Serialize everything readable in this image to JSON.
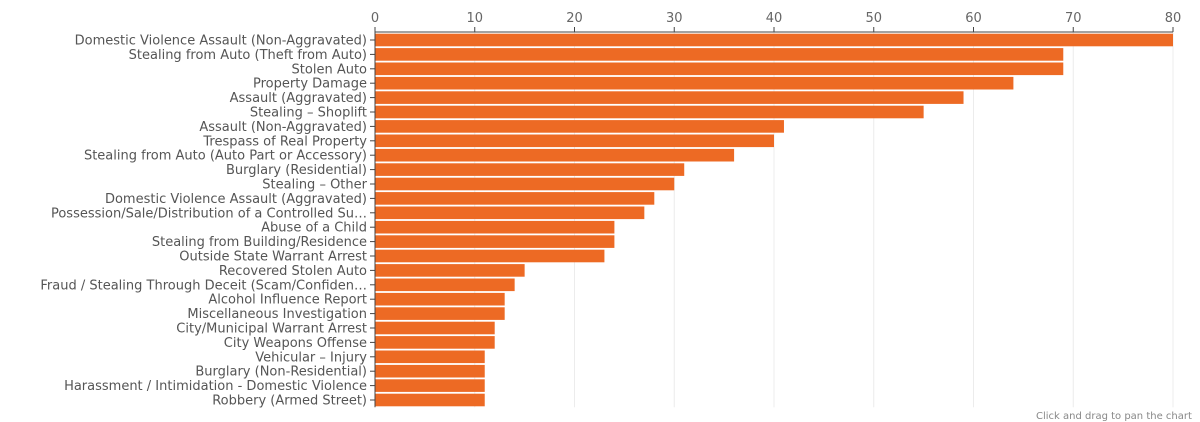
{
  "hint_text": "Click and drag to pan the chart",
  "colors": {
    "bar": "#ed6a24",
    "grid": "#ececec",
    "text": "#555555"
  },
  "chart_data": {
    "type": "bar",
    "orientation": "horizontal",
    "title": "",
    "xlabel": "",
    "ylabel": "",
    "xlim": [
      0,
      80
    ],
    "x_ticks": [
      0,
      10,
      20,
      30,
      40,
      50,
      60,
      70,
      80
    ],
    "x_axis_position": "top",
    "grid": true,
    "categories": [
      "Domestic Violence Assault (Non-Aggravated)",
      "Stealing from Auto (Theft from Auto)",
      "Stolen Auto",
      "Property Damage",
      "Assault (Aggravated)",
      "Stealing – Shoplift",
      "Assault (Non-Aggravated)",
      "Trespass of Real Property",
      "Stealing from Auto (Auto Part or Accessory)",
      "Burglary (Residential)",
      "Stealing – Other",
      "Domestic Violence Assault (Aggravated)",
      "Possession/Sale/Distribution of a Controlled Su…",
      "Abuse of a Child",
      "Stealing from Building/Residence",
      "Outside State Warrant Arrest",
      "Recovered Stolen Auto",
      "Fraud / Stealing Through Deceit (Scam/Confiden…",
      "Alcohol Influence Report",
      "Miscellaneous Investigation",
      "City/Municipal Warrant Arrest",
      "City Weapons Offense",
      "Vehicular – Injury",
      "Burglary (Non-Residential)",
      "Harassment / Intimidation - Domestic Violence",
      "Robbery (Armed Street)"
    ],
    "values": [
      80,
      69,
      69,
      64,
      59,
      55,
      41,
      40,
      36,
      31,
      30,
      28,
      27,
      24,
      24,
      23,
      15,
      14,
      13,
      13,
      12,
      12,
      11,
      11,
      11,
      11
    ]
  }
}
